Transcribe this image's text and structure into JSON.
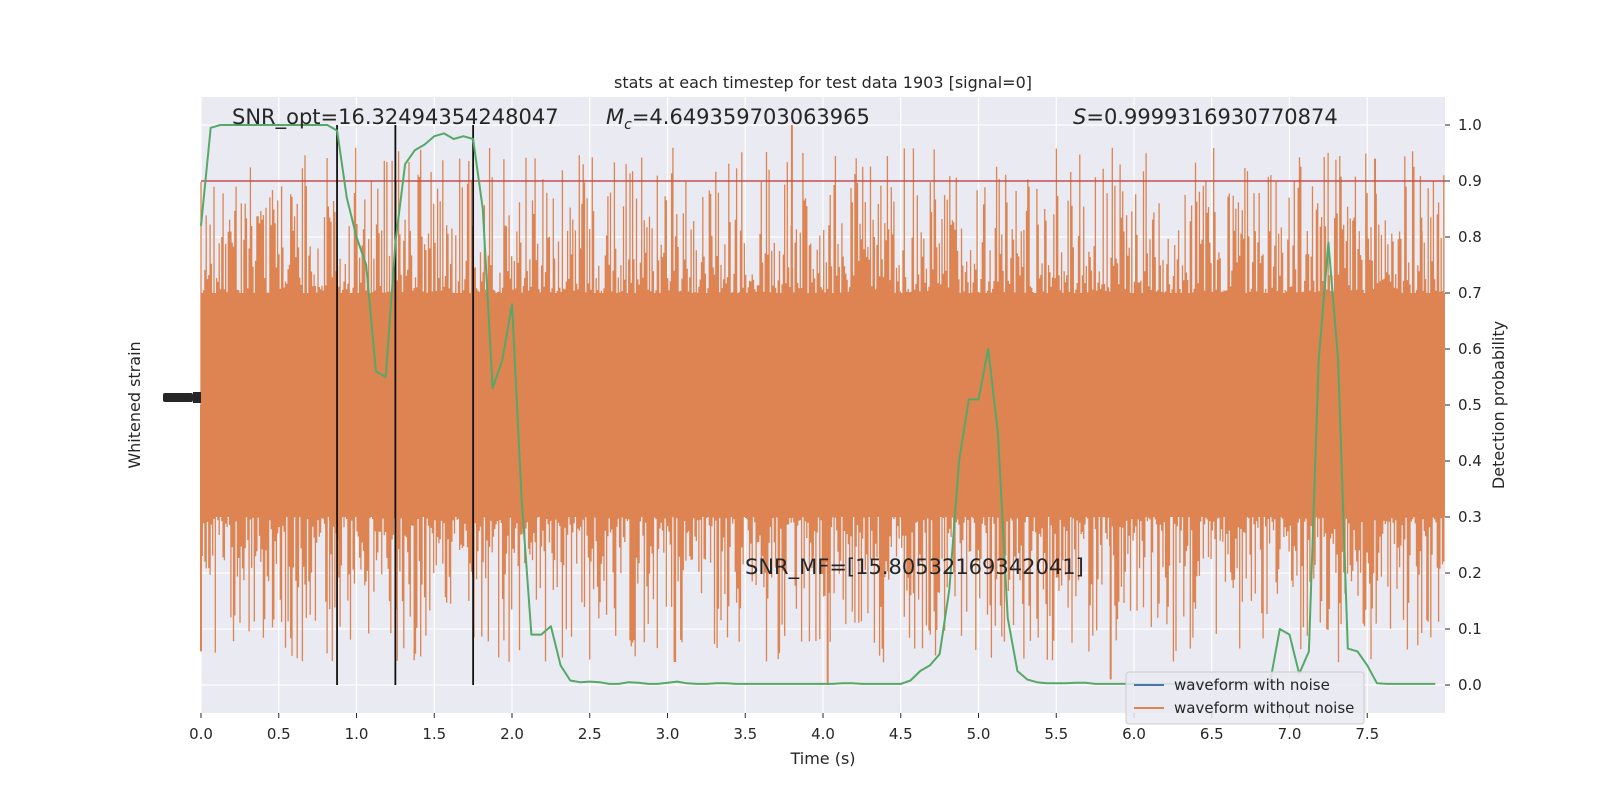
{
  "chart_data": {
    "type": "line",
    "title": "stats at each timestep for test data 1903 [signal=0]",
    "xlabel": "Time (s)",
    "ylabel_left": "Whitened strain",
    "ylabel_right": "Detection probability",
    "xlim": [
      0.0,
      8.0
    ],
    "ylim_right": [
      -0.05,
      1.05
    ],
    "xticks": [
      "0.0",
      "0.5",
      "1.0",
      "1.5",
      "2.0",
      "2.5",
      "3.0",
      "3.5",
      "4.0",
      "4.5",
      "5.0",
      "5.5",
      "6.0",
      "6.5",
      "7.0",
      "7.5"
    ],
    "yticks_right": [
      "0.0",
      "0.1",
      "0.2",
      "0.3",
      "0.4",
      "0.5",
      "0.6",
      "0.7",
      "0.8",
      "0.9",
      "1.0"
    ],
    "annotations": {
      "snr_opt": "SNR_opt=16.32494354248047",
      "mc_symbol": "M",
      "mc_sub": "c",
      "mc_value": "=4.649359703063965",
      "s_symbol": "S",
      "s_value": "=0.9999316930770874",
      "snr_mf": "SNR_MF=[15.80532169342041]"
    },
    "threshold": 0.9,
    "vertical_markers": [
      0.875,
      1.25,
      1.75
    ],
    "legend": {
      "position": "lower-right",
      "entries": [
        "waveform with noise",
        "waveform without noise"
      ]
    },
    "series": [
      {
        "name": "waveform without noise",
        "kind": "noise-band",
        "core_range": [
          0.3,
          0.7
        ],
        "spike_range": [
          0.0,
          1.0
        ]
      },
      {
        "name": "Detection probability",
        "x": [
          0.0,
          0.0625,
          0.125,
          0.1875,
          0.25,
          0.3125,
          0.375,
          0.4375,
          0.5,
          0.5625,
          0.625,
          0.6875,
          0.75,
          0.8125,
          0.875,
          0.9375,
          1.0,
          1.0625,
          1.125,
          1.1875,
          1.25,
          1.3125,
          1.375,
          1.4375,
          1.5,
          1.5625,
          1.625,
          1.6875,
          1.75,
          1.8125,
          1.875,
          1.9375,
          2.0,
          2.0625,
          2.125,
          2.1875,
          2.25,
          2.3125,
          2.375,
          2.4375,
          2.5,
          2.5625,
          2.625,
          2.6875,
          2.75,
          2.8125,
          2.875,
          2.9375,
          3.0,
          3.0625,
          3.125,
          3.1875,
          3.25,
          3.3125,
          3.375,
          3.4375,
          3.5,
          3.5625,
          3.625,
          3.6875,
          3.75,
          3.8125,
          3.875,
          3.9375,
          4.0,
          4.0625,
          4.125,
          4.1875,
          4.25,
          4.3125,
          4.375,
          4.4375,
          4.5,
          4.5625,
          4.625,
          4.6875,
          4.75,
          4.8125,
          4.875,
          4.9375,
          5.0,
          5.0625,
          5.125,
          5.1875,
          5.25,
          5.3125,
          5.375,
          5.4375,
          5.5,
          5.5625,
          5.625,
          5.6875,
          5.75,
          5.8125,
          5.875,
          5.9375,
          6.0,
          6.0625,
          6.125,
          6.1875,
          6.25,
          6.3125,
          6.375,
          6.4375,
          6.5,
          6.5625,
          6.625,
          6.6875,
          6.75,
          6.8125,
          6.875,
          6.9375,
          7.0,
          7.0625,
          7.125,
          7.1875,
          7.25,
          7.3125,
          7.375,
          7.4375,
          7.5,
          7.5625,
          7.625,
          7.6875,
          7.75,
          7.8125,
          7.875,
          7.9375
        ],
        "y": [
          0.82,
          0.995,
          1.0,
          1.0,
          1.0,
          1.0,
          1.0,
          1.0,
          1.0,
          1.0,
          1.0,
          1.0,
          1.0,
          1.0,
          0.99,
          0.87,
          0.8,
          0.75,
          0.56,
          0.55,
          0.79,
          0.93,
          0.955,
          0.965,
          0.98,
          0.985,
          0.975,
          0.98,
          0.975,
          0.85,
          0.53,
          0.58,
          0.68,
          0.33,
          0.09,
          0.09,
          0.105,
          0.035,
          0.008,
          0.005,
          0.006,
          0.005,
          0.002,
          0.002,
          0.005,
          0.004,
          0.002,
          0.002,
          0.004,
          0.006,
          0.003,
          0.002,
          0.002,
          0.003,
          0.003,
          0.002,
          0.002,
          0.002,
          0.002,
          0.002,
          0.002,
          0.002,
          0.002,
          0.002,
          0.002,
          0.002,
          0.003,
          0.003,
          0.002,
          0.002,
          0.002,
          0.002,
          0.002,
          0.008,
          0.025,
          0.035,
          0.055,
          0.17,
          0.4,
          0.51,
          0.51,
          0.6,
          0.45,
          0.12,
          0.025,
          0.01,
          0.005,
          0.003,
          0.003,
          0.003,
          0.004,
          0.004,
          0.002,
          0.002,
          0.002,
          0.002,
          0.002,
          0.002,
          0.002,
          0.002,
          0.002,
          0.002,
          0.002,
          0.002,
          0.002,
          0.002,
          0.002,
          0.002,
          0.002,
          0.004,
          0.005,
          0.1,
          0.09,
          0.02,
          0.06,
          0.58,
          0.79,
          0.58,
          0.065,
          0.06,
          0.035,
          0.003,
          0.002,
          0.002,
          0.002,
          0.002,
          0.002,
          0.002
        ]
      }
    ]
  }
}
